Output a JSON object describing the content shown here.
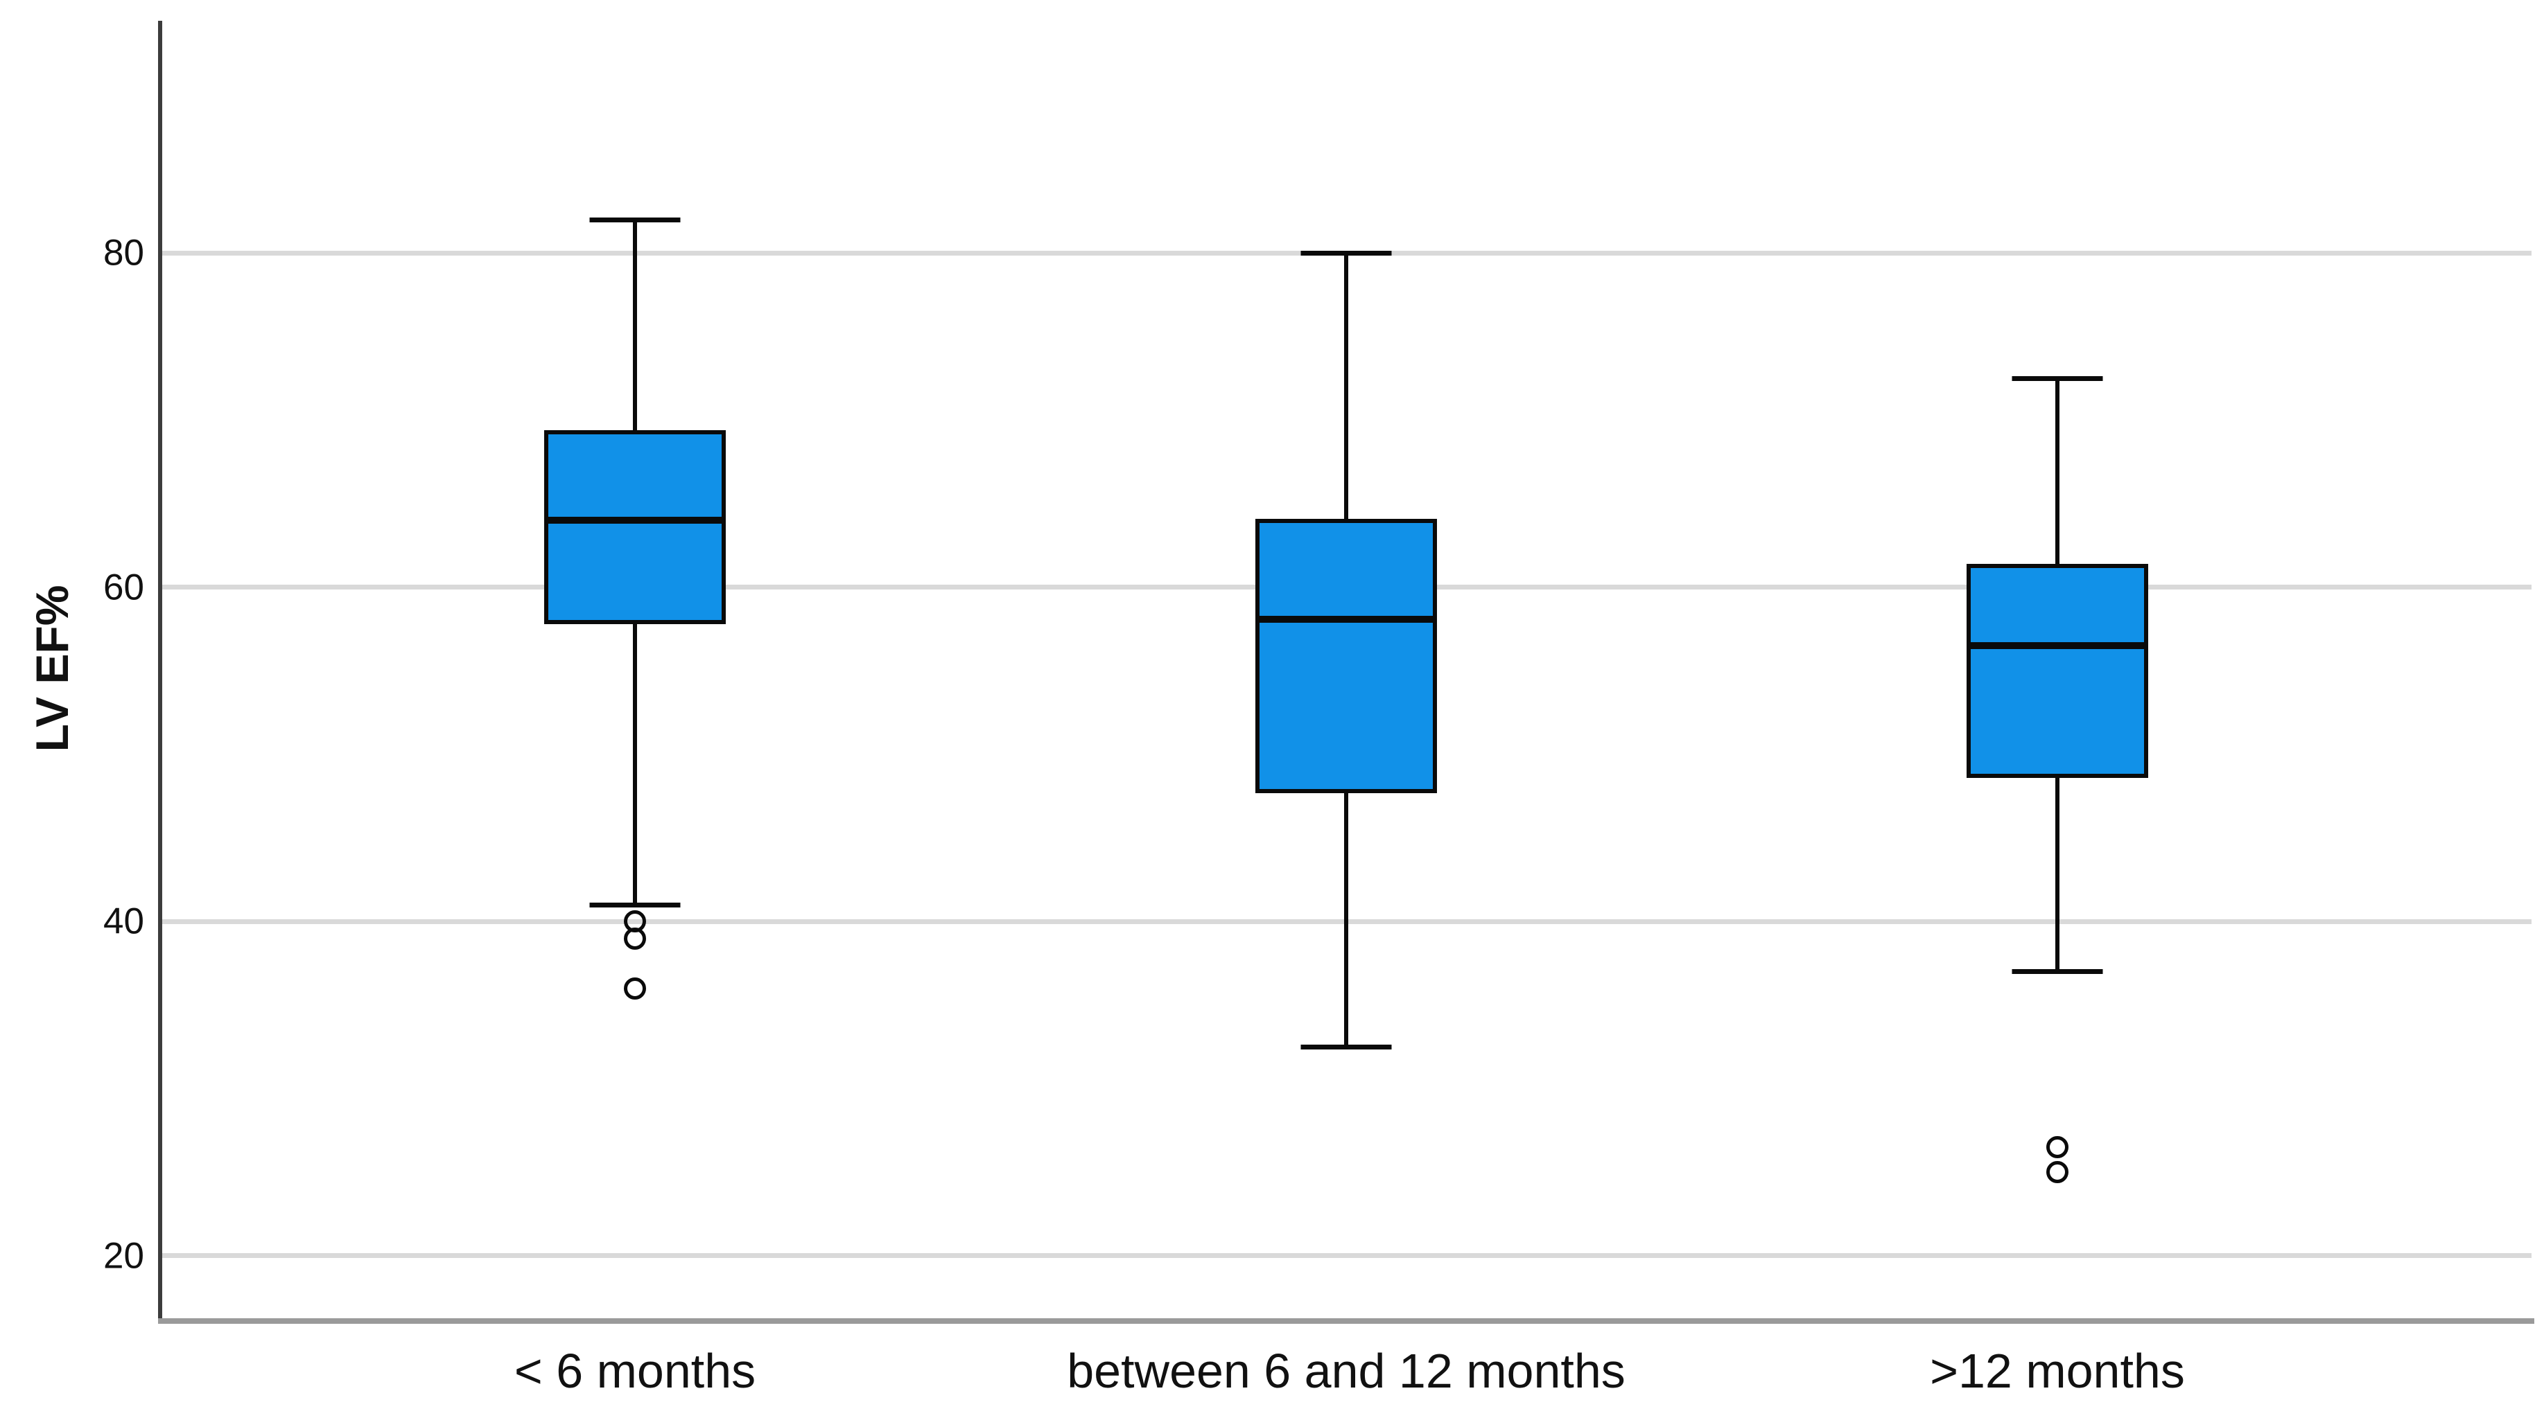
{
  "chart_data": {
    "type": "boxplot",
    "title": "",
    "xlabel": "",
    "ylabel": "LV EF%",
    "ylim": [
      16.1,
      93.9
    ],
    "yticks": [
      20,
      40,
      60,
      80
    ],
    "grid": "horizontal",
    "legend": "none",
    "categories": [
      "< 6 months",
      "between 6 and 12 months",
      ">12 months"
    ],
    "series": [
      {
        "category": "< 6 months",
        "whisker_low": 41,
        "q1": 57.8,
        "median": 64,
        "q3": 69.4,
        "whisker_high": 82,
        "outliers": [
          40,
          39,
          36
        ]
      },
      {
        "category": "between 6 and 12 months",
        "whisker_low": 32.5,
        "q1": 47.7,
        "median": 58.1,
        "q3": 64.1,
        "whisker_high": 80,
        "outliers": []
      },
      {
        "category": ">12 months",
        "whisker_low": 37,
        "q1": 48.6,
        "median": 56.5,
        "q3": 61.4,
        "whisker_high": 72.5,
        "outliers": [
          26.5,
          25
        ]
      }
    ],
    "colors": {
      "box_fill": "#1191E8",
      "box_border": "#0a0a0a",
      "gridline": "#d9d9d9",
      "y_axis": "#3c3c3c",
      "x_axis": "#9a9a9a",
      "text": "#111111",
      "background": "#ffffff"
    }
  }
}
